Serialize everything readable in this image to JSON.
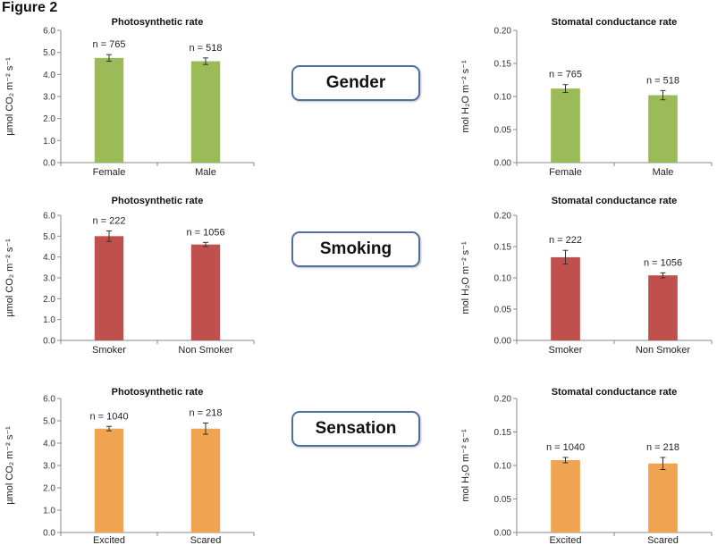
{
  "figure_title": "Figure 2",
  "category_labels": [
    "Gender",
    "Smoking",
    "Sensation"
  ],
  "colors": {
    "green": "#9bbb59",
    "red": "#c0504d",
    "orange": "#f0a350",
    "axis": "#888888",
    "error": "#333333"
  },
  "chart_data": [
    {
      "type": "bar",
      "title": "Photosynthetic rate",
      "ylabel": "µmol CO₂ m⁻² s⁻¹",
      "categories": [
        "Female",
        "Male"
      ],
      "values": [
        4.75,
        4.6
      ],
      "errors": [
        0.15,
        0.15
      ],
      "data_labels": [
        "n = 765",
        "n = 518"
      ],
      "ylim": [
        0,
        6
      ],
      "yticks": [
        "0.0",
        "1.0",
        "2.0",
        "3.0",
        "4.0",
        "5.0",
        "6.0"
      ],
      "color": "green"
    },
    {
      "type": "bar",
      "title": "Stomatal conductance rate",
      "ylabel": "mol H₂O m⁻² s⁻¹",
      "categories": [
        "Female",
        "Male"
      ],
      "values": [
        0.112,
        0.102
      ],
      "errors": [
        0.006,
        0.007
      ],
      "data_labels": [
        "n = 765",
        "n = 518"
      ],
      "ylim": [
        0,
        0.2
      ],
      "yticks": [
        "0.00",
        "0.05",
        "0.10",
        "0.15",
        "0.20"
      ],
      "color": "green"
    },
    {
      "type": "bar",
      "title": "Photosynthetic rate",
      "ylabel": "µmol CO₂ m⁻² s⁻¹",
      "categories": [
        "Smoker",
        "Non Smoker"
      ],
      "values": [
        5.0,
        4.6
      ],
      "errors": [
        0.25,
        0.1
      ],
      "data_labels": [
        "n = 222",
        "n = 1056"
      ],
      "ylim": [
        0,
        6
      ],
      "yticks": [
        "0.0",
        "1.0",
        "2.0",
        "3.0",
        "4.0",
        "5.0",
        "6.0"
      ],
      "color": "red"
    },
    {
      "type": "bar",
      "title": "Stomatal conductance rate",
      "ylabel": "mol H₂O m⁻² s⁻¹",
      "categories": [
        "Smoker",
        "Non Smoker"
      ],
      "values": [
        0.133,
        0.104
      ],
      "errors": [
        0.011,
        0.004
      ],
      "data_labels": [
        "n = 222",
        "n = 1056"
      ],
      "ylim": [
        0,
        0.2
      ],
      "yticks": [
        "0.00",
        "0.05",
        "0.10",
        "0.15",
        "0.20"
      ],
      "color": "red"
    },
    {
      "type": "bar",
      "title": "Photosynthetic rate",
      "ylabel": "µmol CO₂ m⁻² s⁻¹",
      "categories": [
        "Excited",
        "Scared"
      ],
      "values": [
        4.65,
        4.65
      ],
      "errors": [
        0.1,
        0.25
      ],
      "data_labels": [
        "n = 1040",
        "n = 218"
      ],
      "ylim": [
        0,
        6
      ],
      "yticks": [
        "0.0",
        "1.0",
        "2.0",
        "3.0",
        "4.0",
        "5.0",
        "6.0"
      ],
      "color": "orange"
    },
    {
      "type": "bar",
      "title": "Stomatal conductance rate",
      "ylabel": "mol H₂O m⁻² s⁻¹",
      "categories": [
        "Excited",
        "Scared"
      ],
      "values": [
        0.108,
        0.103
      ],
      "errors": [
        0.004,
        0.009
      ],
      "data_labels": [
        "n = 1040",
        "n = 218"
      ],
      "ylim": [
        0,
        0.2
      ],
      "yticks": [
        "0.00",
        "0.05",
        "0.10",
        "0.15",
        "0.20"
      ],
      "color": "orange"
    }
  ]
}
